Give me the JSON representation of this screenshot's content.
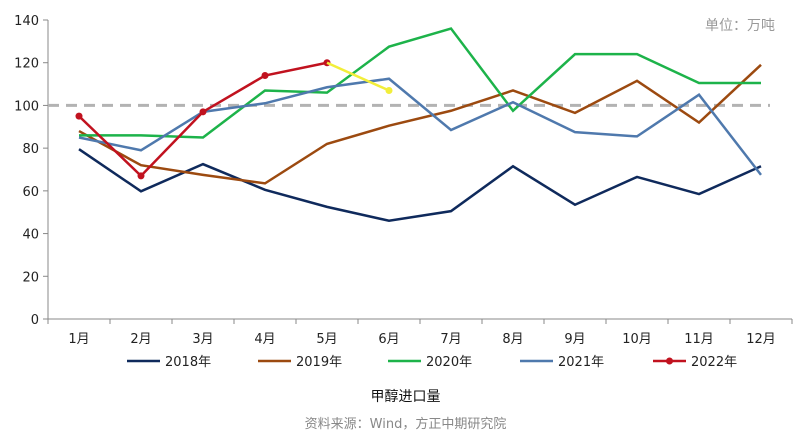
{
  "chart_data": {
    "type": "line",
    "title": "甲醇进口量",
    "source": "资料来源：Wind，方正中期研究院",
    "unit_label": "单位：万吨",
    "categories": [
      "1月",
      "2月",
      "3月",
      "4月",
      "5月",
      "6月",
      "7月",
      "8月",
      "9月",
      "10月",
      "11月",
      "12月"
    ],
    "ylim": [
      0,
      140
    ],
    "yticks": [
      0,
      20,
      40,
      60,
      80,
      100,
      120,
      140
    ],
    "reference_line": 100,
    "grid": false,
    "legend_position": "bottom",
    "series": [
      {
        "name": "2018年",
        "color": "#0f2a5c",
        "values": [
          79.5,
          59.8,
          72.5,
          60.5,
          52.5,
          46,
          50.5,
          71.5,
          53.5,
          66.5,
          58.5,
          71.5
        ]
      },
      {
        "name": "2019年",
        "color": "#9c4a10",
        "values": [
          88,
          72,
          67.5,
          63.5,
          82,
          90.5,
          97.5,
          107,
          96.5,
          111.5,
          92,
          119
        ]
      },
      {
        "name": "2020年",
        "color": "#1db34a",
        "values": [
          86,
          86,
          85,
          107,
          106,
          127.5,
          136,
          97.5,
          124,
          124,
          110.5,
          110.5
        ]
      },
      {
        "name": "2021年",
        "color": "#4f79ad",
        "values": [
          85,
          79,
          97,
          101,
          108.5,
          112.5,
          88.5,
          101.5,
          87.5,
          85.5,
          105,
          67.5
        ]
      },
      {
        "name": "2022年",
        "color": "#c1121f",
        "marker": true,
        "values": [
          95,
          67,
          97,
          114,
          120,
          null,
          null,
          null,
          null,
          null,
          null,
          null
        ]
      }
    ],
    "projection": {
      "color": "#f2ee3a",
      "points": [
        {
          "x": "5月",
          "y": 120
        },
        {
          "x": "6月",
          "y": 107
        }
      ]
    }
  }
}
